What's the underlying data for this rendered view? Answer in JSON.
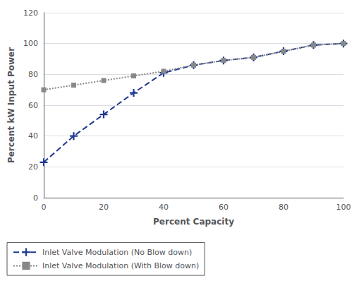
{
  "chart_data": {
    "type": "line",
    "xlabel": "Percent Capacity",
    "ylabel": "Percent kW Input Power",
    "x": [
      0,
      10,
      20,
      30,
      40,
      50,
      60,
      70,
      80,
      90,
      100
    ],
    "series": [
      {
        "name": "Inlet Valve Modulation (No Blow down)",
        "color": "#1F3A8F",
        "marker": "plus",
        "line_style": "dashed",
        "values": [
          23,
          40,
          54,
          68,
          81,
          86,
          89,
          91,
          95,
          99,
          100
        ]
      },
      {
        "name": "Inlet Valve Modulation (With Blow down)",
        "color": "#888888",
        "marker": "square",
        "line_style": "dotted",
        "values": [
          70,
          73,
          76,
          79,
          82,
          86,
          89,
          91,
          95,
          99,
          100
        ]
      }
    ],
    "xlim": [
      0,
      100
    ],
    "ylim": [
      0,
      120
    ],
    "xticks": [
      0,
      20,
      40,
      60,
      80,
      100
    ],
    "yticks": [
      0,
      20,
      40,
      60,
      80,
      100,
      120
    ],
    "grid": "y",
    "legend": "lower left"
  }
}
